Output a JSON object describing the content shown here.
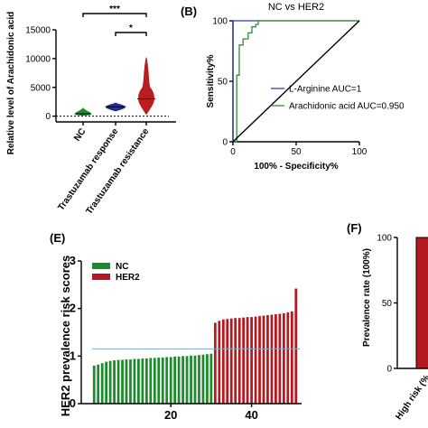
{
  "chart_data": [
    {
      "panel": "",
      "type": "violin",
      "title": "",
      "ylabel": "Relative level of Arachidonic acid",
      "ylim": [
        -1000,
        15000
      ],
      "yticks": [
        "0",
        "5000",
        "10000",
        "15000"
      ],
      "categories": [
        "NC",
        "Trastuzamab response",
        "Trastuzamab resistance"
      ],
      "colors": [
        "#1a8c2e",
        "#1c2f9c",
        "#b81e1e"
      ],
      "medians": [
        400,
        1600,
        3000
      ],
      "ranges": [
        [
          150,
          1400
        ],
        [
          900,
          2300
        ],
        [
          300,
          10200
        ]
      ],
      "significance": [
        {
          "from": 0,
          "to": 2,
          "label": "***"
        },
        {
          "from": 1,
          "to": 2,
          "label": "*"
        }
      ]
    },
    {
      "panel": "(B)",
      "type": "line",
      "title": "NC vs HER2",
      "xlabel": "100% - Specificity%",
      "ylabel": "Sensitivity%",
      "xlim": [
        0,
        100
      ],
      "ylim": [
        0,
        100
      ],
      "xticks": [
        "0",
        "50",
        "100"
      ],
      "yticks": [
        "0",
        "50",
        "100"
      ],
      "series": [
        {
          "name": "L-Arginine AUC=1",
          "color": "#2c3fb0",
          "x": [
            0,
            0,
            100
          ],
          "y": [
            0,
            100,
            100
          ]
        },
        {
          "name": "Arachidonic acid AUC=0.950",
          "color": "#2f8f2f",
          "x": [
            0,
            3,
            3,
            5,
            5,
            8,
            8,
            12,
            12,
            15,
            15,
            18,
            18,
            20,
            20,
            100
          ],
          "y": [
            0,
            0,
            55,
            55,
            80,
            80,
            85,
            85,
            90,
            90,
            95,
            95,
            97,
            97,
            100,
            100
          ]
        },
        {
          "name": "",
          "color": "#000000",
          "x": [
            0,
            100
          ],
          "y": [
            0,
            100
          ]
        }
      ]
    },
    {
      "panel": "(E)",
      "type": "bar",
      "title": "",
      "xlabel": "",
      "ylabel": "HER2 prevalence risk scores",
      "ylim": [
        0,
        3
      ],
      "yticks": [
        "0",
        "1",
        "2",
        "3"
      ],
      "xticks": [
        "20",
        "40"
      ],
      "threshold": 1.15,
      "series": [
        {
          "name": "NC",
          "color": "#1d8a2c",
          "values": [
            0.8,
            0.82,
            0.85,
            0.88,
            0.9,
            0.91,
            0.92,
            0.92,
            0.93,
            0.93,
            0.94,
            0.94,
            0.95,
            0.95,
            0.96,
            0.96,
            0.97,
            0.97,
            0.98,
            0.98,
            0.99,
            0.99,
            1.0,
            1.0,
            1.01,
            1.01,
            1.02,
            1.03,
            1.04,
            1.05
          ]
        },
        {
          "name": "HER2",
          "color": "#b3191f",
          "values": [
            1.7,
            1.74,
            1.77,
            1.78,
            1.79,
            1.8,
            1.8,
            1.81,
            1.82,
            1.82,
            1.83,
            1.84,
            1.85,
            1.86,
            1.87,
            1.88,
            1.89,
            1.9,
            1.92,
            1.94,
            2.42
          ]
        }
      ]
    },
    {
      "panel": "(F)",
      "type": "bar",
      "title": "",
      "ylabel": "Prevalence rate (100%)",
      "ylim": [
        0,
        100
      ],
      "yticks": [
        "0",
        "50",
        "100"
      ],
      "categories": [
        "High risk (%"
      ],
      "values": [
        100
      ],
      "color": "#b3191f"
    }
  ]
}
